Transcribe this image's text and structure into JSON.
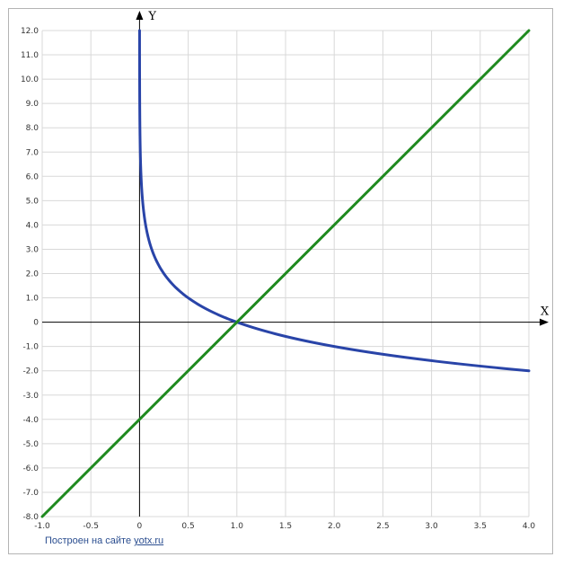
{
  "chart_data": {
    "type": "line",
    "title": "",
    "xlabel": "X",
    "ylabel": "Y",
    "xlim": [
      -1.0,
      4.0
    ],
    "ylim": [
      -8.0,
      12.0
    ],
    "grid": true,
    "x_ticks": [
      "-1.0",
      "-0.5",
      "0",
      "0.5",
      "1.0",
      "1.5",
      "2.0",
      "2.5",
      "3.0",
      "3.5",
      "4.0"
    ],
    "y_ticks": [
      "12.0",
      "11.0",
      "10.0",
      "9.0",
      "8.0",
      "7.0",
      "6.0",
      "5.0",
      "4.0",
      "3.0",
      "2.0",
      "1.0",
      "0",
      "-1.0",
      "-2.0",
      "-3.0",
      "-4.0",
      "-5.0",
      "-6.0",
      "-7.0",
      "-8.0"
    ],
    "series": [
      {
        "color": "#2944a8",
        "x": [
          0.0005,
          0.001,
          0.002,
          0.005,
          0.01,
          0.02,
          0.05,
          0.1,
          0.2,
          0.3,
          0.5,
          0.75,
          1.0,
          1.25,
          1.5,
          2.0,
          2.5,
          3.0,
          3.5,
          4.0
        ],
        "y": [
          10.96,
          9.97,
          8.97,
          7.64,
          6.64,
          5.64,
          4.32,
          3.32,
          2.32,
          1.74,
          1.0,
          0.42,
          0.0,
          -0.32,
          -0.58,
          -1.0,
          -1.32,
          -1.58,
          -1.81,
          -2.0
        ]
      },
      {
        "color": "#1f8a1f",
        "x": [
          -1.0,
          4.0
        ],
        "y": [
          -8.0,
          12.0
        ]
      }
    ]
  },
  "credit": {
    "prefix": "Построен на сайте",
    "link": "yotx.ru"
  }
}
